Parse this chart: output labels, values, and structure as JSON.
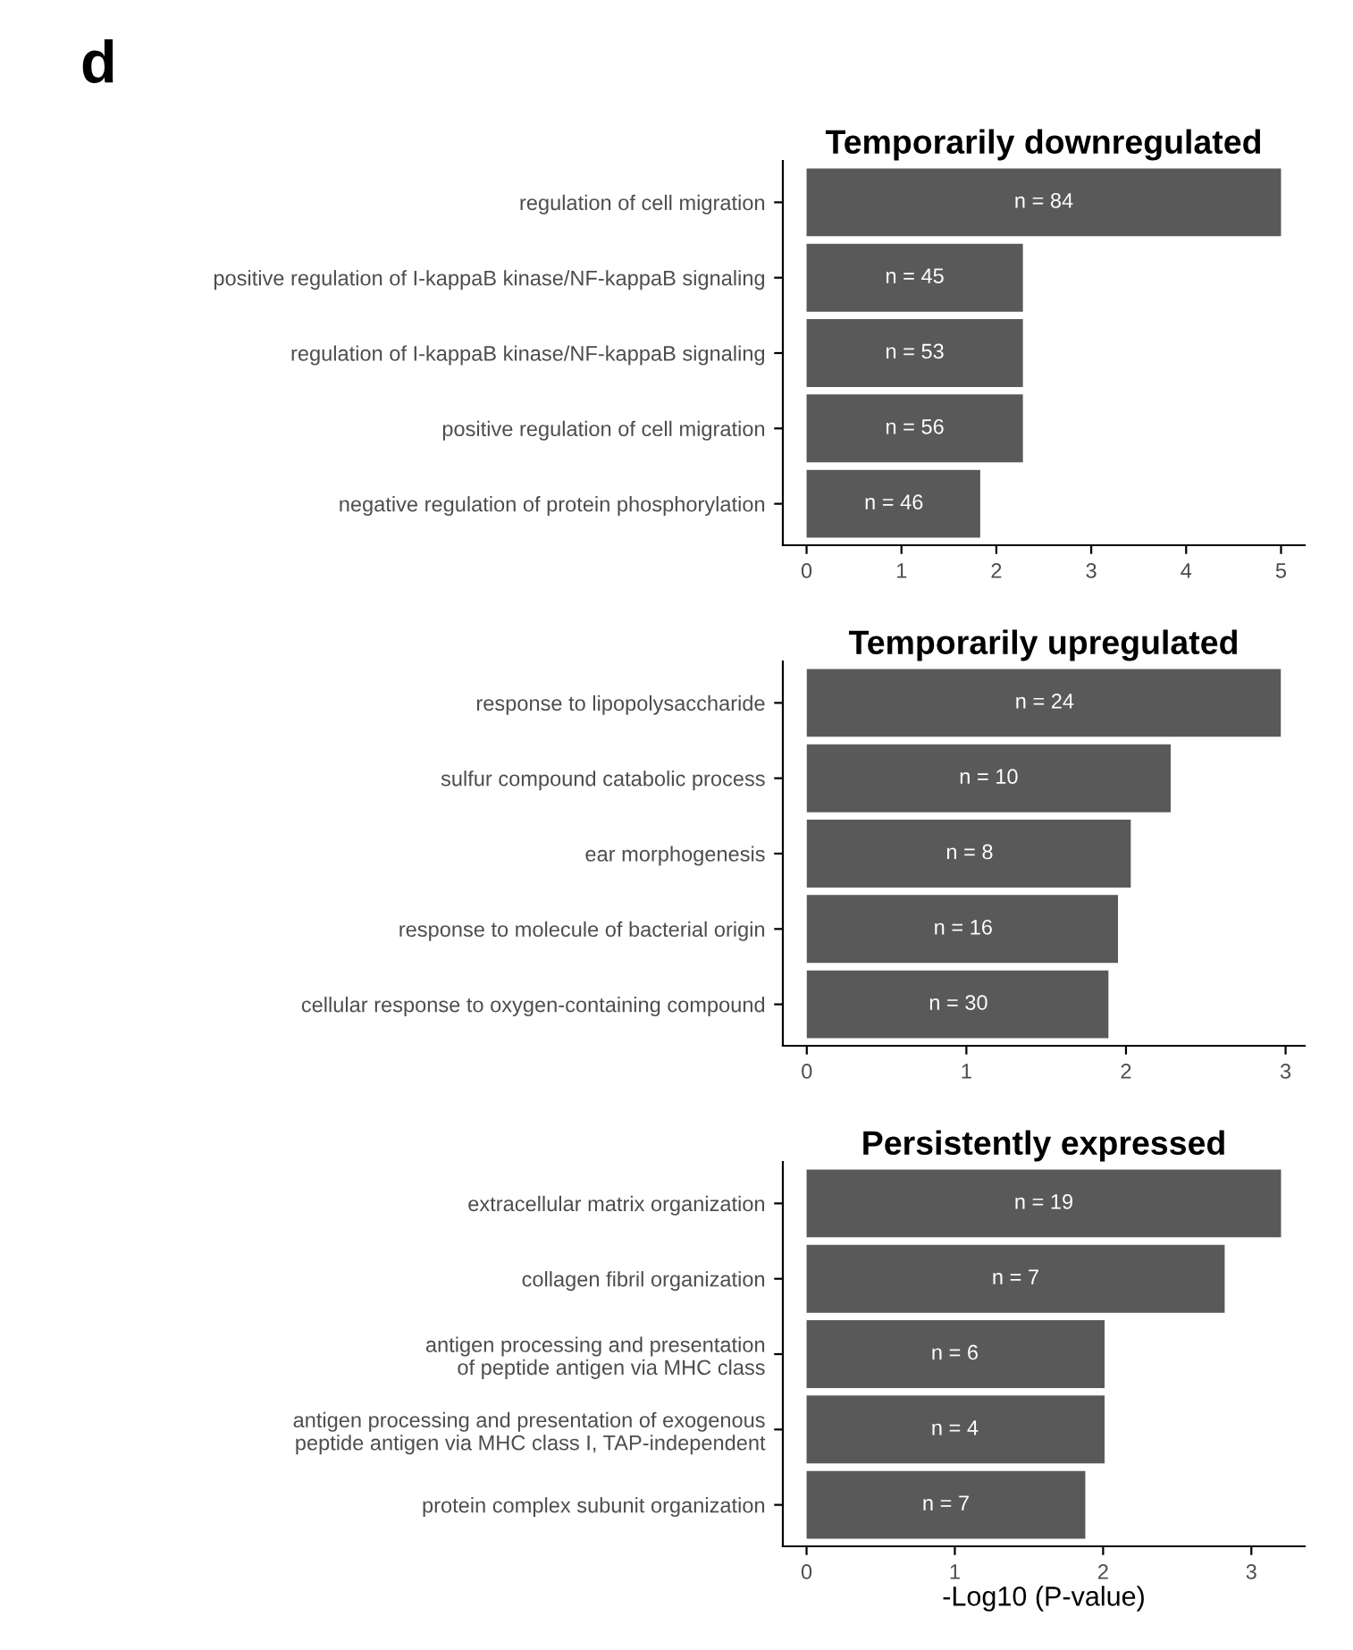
{
  "chart_data": [
    {
      "type": "bar",
      "orientation": "horizontal",
      "title": "Temporarily downregulated",
      "categories": [
        "regulation of cell migration",
        "positive regulation of I-kappaB kinase/NF-kappaB signaling",
        "regulation of I-kappaB kinase/NF-kappaB signaling",
        "positive regulation of cell migration",
        "negative regulation of protein phosphorylation"
      ],
      "series": [
        {
          "color": "#595959",
          "values": [
            5.0,
            2.28,
            2.28,
            2.28,
            1.83
          ]
        }
      ],
      "annotations": [
        "d",
        {
          "text": "n = 84",
          "x": 2.5,
          "y": "regulation of cell migration"
        },
        {
          "text": "n = 45",
          "x": 1.14,
          "y": "positive regulation of I-kappaB kinase/NF-kappaB signaling"
        },
        {
          "text": "n = 53",
          "x": 1.14,
          "y": "regulation of I-kappaB kinase/NF-kappaB signaling"
        },
        {
          "text": "n = 56",
          "x": 1.14,
          "y": "positive regulation of cell migration"
        },
        {
          "text": "n = 46",
          "x": 0.92,
          "y": "negative regulation of protein phosphorylation"
        }
      ],
      "xlim": [
        -0.25,
        5.25
      ],
      "xticks": [
        0,
        1,
        2,
        3,
        4,
        5
      ],
      "grid": false,
      "legend": false
    },
    {
      "type": "bar",
      "orientation": "horizontal",
      "title": "Temporarily upregulated",
      "categories": [
        "response to lipopolysaccharide",
        "sulfur compound catabolic process",
        "ear morphogenesis",
        "response to molecule of bacterial origin",
        "cellular response to oxygen-containing compound"
      ],
      "series": [
        {
          "color": "#595959",
          "values": [
            2.97,
            2.28,
            2.03,
            1.95,
            1.89
          ]
        }
      ],
      "annotations": [
        {
          "text": "n = 24",
          "x": 1.49,
          "y": "response to lipopolysaccharide"
        },
        {
          "text": "n = 10",
          "x": 1.14,
          "y": "sulfur compound catabolic process"
        },
        {
          "text": "n = 8",
          "x": 1.02,
          "y": "ear morphogenesis"
        },
        {
          "text": "n = 16",
          "x": 0.98,
          "y": "response to molecule of bacterial origin"
        },
        {
          "text": "n = 30",
          "x": 0.95,
          "y": "cellular response to oxygen-containing compound"
        }
      ],
      "xlim": [
        -0.15,
        3.12
      ],
      "xticks": [
        0,
        1,
        2,
        3
      ],
      "grid": false,
      "legend": false
    },
    {
      "type": "bar",
      "orientation": "horizontal",
      "title": "Persistently expressed",
      "xlabel": "-Log10 (P-value)",
      "categories": [
        "extracellular matrix organization",
        "collagen fibril organization",
        "antigen processing and presentation\nof peptide antigen via MHC class",
        "antigen processing and presentation of exogenous\npeptide antigen via MHC class I, TAP-independent",
        "protein complex subunit organization"
      ],
      "series": [
        {
          "color": "#595959",
          "values": [
            3.2,
            2.82,
            2.01,
            2.01,
            1.88
          ]
        }
      ],
      "annotations": [
        {
          "text": "n = 19",
          "x": 1.6,
          "y": "extracellular matrix organization"
        },
        {
          "text": "n = 7",
          "x": 1.41,
          "y": "collagen fibril organization"
        },
        {
          "text": "n = 6",
          "x": 1.0,
          "y": "antigen processing and presentation\nof peptide antigen via MHC class"
        },
        {
          "text": "n = 4",
          "x": 1.0,
          "y": "antigen processing and presentation of exogenous\npeptide antigen via MHC class I, TAP-independent"
        },
        {
          "text": "n = 7",
          "x": 0.94,
          "y": "protein complex subunit organization"
        }
      ],
      "xlim": [
        -0.16,
        3.36
      ],
      "xticks": [
        0,
        1,
        2,
        3
      ],
      "grid": false,
      "legend": false
    }
  ]
}
